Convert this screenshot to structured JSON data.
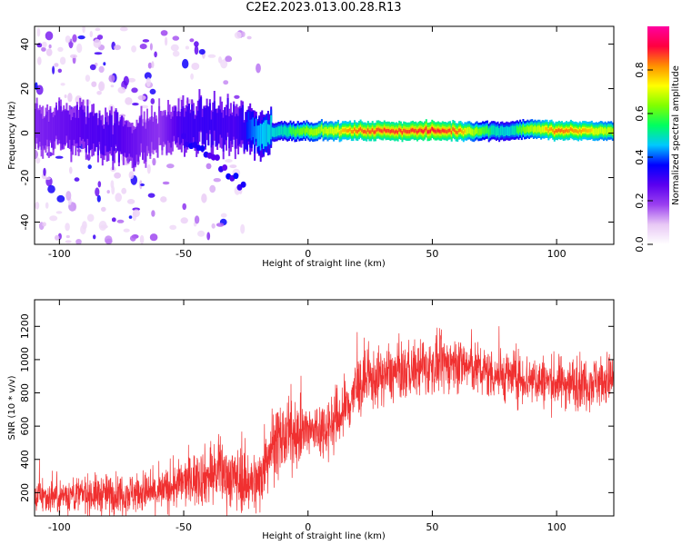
{
  "figure": {
    "title": "C2E2.2023.013.00.28.R13"
  },
  "chart_data": [
    {
      "type": "heatmap",
      "xlabel": "Height of straight line (km)",
      "ylabel": "Frequency (Hz)",
      "xlim": [
        -110,
        123
      ],
      "ylim": [
        -50,
        48
      ],
      "xticks": [
        -100,
        -50,
        0,
        50,
        100
      ],
      "yticks": [
        -40,
        -20,
        0,
        20,
        40
      ],
      "colorbar": {
        "label": "Normalized spectral amplitude",
        "range": [
          0,
          1
        ],
        "ticks": [
          0.0,
          0.2,
          0.4,
          0.6,
          0.8
        ],
        "colormap": [
          "#ffffff",
          "#e8c8f5",
          "#9b40f0",
          "#5a00f0",
          "#0000ff",
          "#00c8ff",
          "#00ff60",
          "#80ff00",
          "#ffff00",
          "#ff9000",
          "#ff0040",
          "#ff00a0"
        ]
      },
      "ridge": [
        {
          "x": -110,
          "freq": 3,
          "amp": 0.22
        },
        {
          "x": -90,
          "freq": 2,
          "amp": 0.28
        },
        {
          "x": -80,
          "freq": -1,
          "amp": 0.3
        },
        {
          "x": -70,
          "freq": -4,
          "amp": 0.25
        },
        {
          "x": -60,
          "freq": 0,
          "amp": 0.2
        },
        {
          "x": -50,
          "freq": 3,
          "amp": 0.32
        },
        {
          "x": -40,
          "freq": 4,
          "amp": 0.34
        },
        {
          "x": -30,
          "freq": 2,
          "amp": 0.3
        },
        {
          "x": -20,
          "freq": 0,
          "amp": 0.45
        },
        {
          "x": -10,
          "freq": 1,
          "amp": 0.55
        },
        {
          "x": 0,
          "freq": 1,
          "amp": 0.65
        },
        {
          "x": 10,
          "freq": 1,
          "amp": 0.75
        },
        {
          "x": 20,
          "freq": 1,
          "amp": 0.85
        },
        {
          "x": 30,
          "freq": 1,
          "amp": 0.9
        },
        {
          "x": 40,
          "freq": 1,
          "amp": 0.9
        },
        {
          "x": 50,
          "freq": 1,
          "amp": 0.95
        },
        {
          "x": 60,
          "freq": 1,
          "amp": 0.85
        },
        {
          "x": 70,
          "freq": 1,
          "amp": 0.6
        },
        {
          "x": 80,
          "freq": 1,
          "amp": 0.5
        },
        {
          "x": 90,
          "freq": 2,
          "amp": 0.7
        },
        {
          "x": 100,
          "freq": 1,
          "amp": 0.85
        },
        {
          "x": 110,
          "freq": 1,
          "amp": 0.8
        },
        {
          "x": 123,
          "freq": 1,
          "amp": 0.7
        }
      ],
      "branch": [
        {
          "x": -50,
          "freq": -3
        },
        {
          "x": -40,
          "freq": -10
        },
        {
          "x": -30,
          "freq": -20
        },
        {
          "x": -25,
          "freq": -25
        }
      ]
    },
    {
      "type": "line",
      "xlabel": "Height of straight line (km)",
      "ylabel": "SNR (10 * v/v)",
      "xlim": [
        -110,
        123
      ],
      "ylim": [
        60,
        1360
      ],
      "xticks": [
        -100,
        -50,
        0,
        50,
        100
      ],
      "yticks": [
        200,
        400,
        600,
        800,
        1000,
        1200
      ],
      "color": "#f03030",
      "series": [
        {
          "x": [
            -110,
            -100,
            -90,
            -80,
            -70,
            -60,
            -50,
            -45,
            -40,
            -35,
            -30,
            -25,
            -20,
            -17,
            -15,
            -10,
            -5,
            0,
            5,
            10,
            15,
            20,
            30,
            40,
            50,
            60,
            70,
            80,
            90,
            100,
            110,
            123
          ],
          "mean": [
            170,
            180,
            190,
            190,
            200,
            200,
            260,
            290,
            300,
            320,
            290,
            270,
            250,
            420,
            480,
            520,
            560,
            560,
            580,
            620,
            700,
            840,
            900,
            930,
            960,
            980,
            930,
            900,
            880,
            860,
            860,
            880
          ],
          "spread": [
            90,
            90,
            100,
            110,
            110,
            110,
            130,
            150,
            160,
            170,
            170,
            170,
            180,
            200,
            200,
            190,
            170,
            160,
            160,
            170,
            180,
            170,
            150,
            150,
            150,
            150,
            140,
            140,
            140,
            140,
            140,
            140
          ]
        }
      ]
    }
  ]
}
